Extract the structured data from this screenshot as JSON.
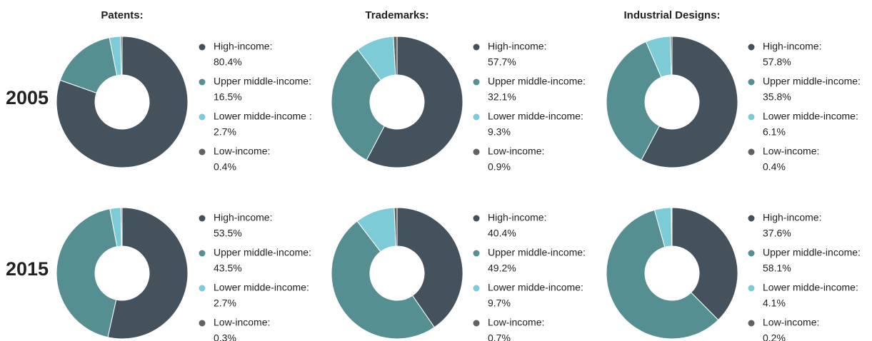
{
  "column_titles": [
    "Patents:",
    "Trademarks:",
    "Industrial Designs:"
  ],
  "row_labels": [
    "2005",
    "2015"
  ],
  "chart_data": [
    {
      "type": "pie",
      "categories": [
        "High-income:",
        "Upper middle-income:",
        "Lower midde-income :",
        "Low-income:"
      ],
      "values": [
        80.4,
        16.5,
        2.7,
        0.4
      ],
      "value_labels": [
        "80.4%",
        "16.5%",
        "2.7%",
        "0.4%"
      ],
      "colors": [
        "#44525e",
        "#568f91",
        "#7ccbd6",
        "#616161"
      ]
    },
    {
      "type": "pie",
      "categories": [
        "High-income:",
        "Upper middle-income:",
        "Lower midde-income:",
        "Low-income:"
      ],
      "values": [
        57.7,
        32.1,
        9.3,
        0.9
      ],
      "value_labels": [
        "57.7%",
        "32.1%",
        "9.3%",
        "0.9%"
      ],
      "colors": [
        "#44525e",
        "#568f91",
        "#7ccbd6",
        "#616161"
      ]
    },
    {
      "type": "pie",
      "categories": [
        "High-income:",
        "Upper middle-income:",
        "Lower midde-income:",
        "Low-income:"
      ],
      "values": [
        57.8,
        35.8,
        6.1,
        0.4
      ],
      "value_labels": [
        "57.8%",
        "35.8%",
        "6.1%",
        "0.4%"
      ],
      "colors": [
        "#44525e",
        "#568f91",
        "#7ccbd6",
        "#616161"
      ]
    },
    {
      "type": "pie",
      "categories": [
        "High-income:",
        "Upper middle-income:",
        "Lower midde-income:",
        "Low-income:"
      ],
      "values": [
        53.5,
        43.5,
        2.7,
        0.3
      ],
      "value_labels": [
        "53.5%",
        "43.5%",
        "2.7%",
        "0.3%"
      ],
      "colors": [
        "#44525e",
        "#568f91",
        "#7ccbd6",
        "#616161"
      ]
    },
    {
      "type": "pie",
      "categories": [
        "High-income:",
        "Upper middle-income:",
        "Lower midde-income:",
        "Low-income:"
      ],
      "values": [
        40.4,
        49.2,
        9.7,
        0.7
      ],
      "value_labels": [
        "40.4%",
        "49.2%",
        "9.7%",
        "0.7%"
      ],
      "colors": [
        "#44525e",
        "#568f91",
        "#7ccbd6",
        "#616161"
      ]
    },
    {
      "type": "pie",
      "categories": [
        "High-income:",
        "Upper middle-income:",
        "Lower midde-income:",
        "Low-income:"
      ],
      "values": [
        37.6,
        58.1,
        4.1,
        0.2
      ],
      "value_labels": [
        "37.6%",
        "58.1%",
        "4.1%",
        "0.2%"
      ],
      "colors": [
        "#44525e",
        "#568f91",
        "#7ccbd6",
        "#616161"
      ]
    }
  ]
}
